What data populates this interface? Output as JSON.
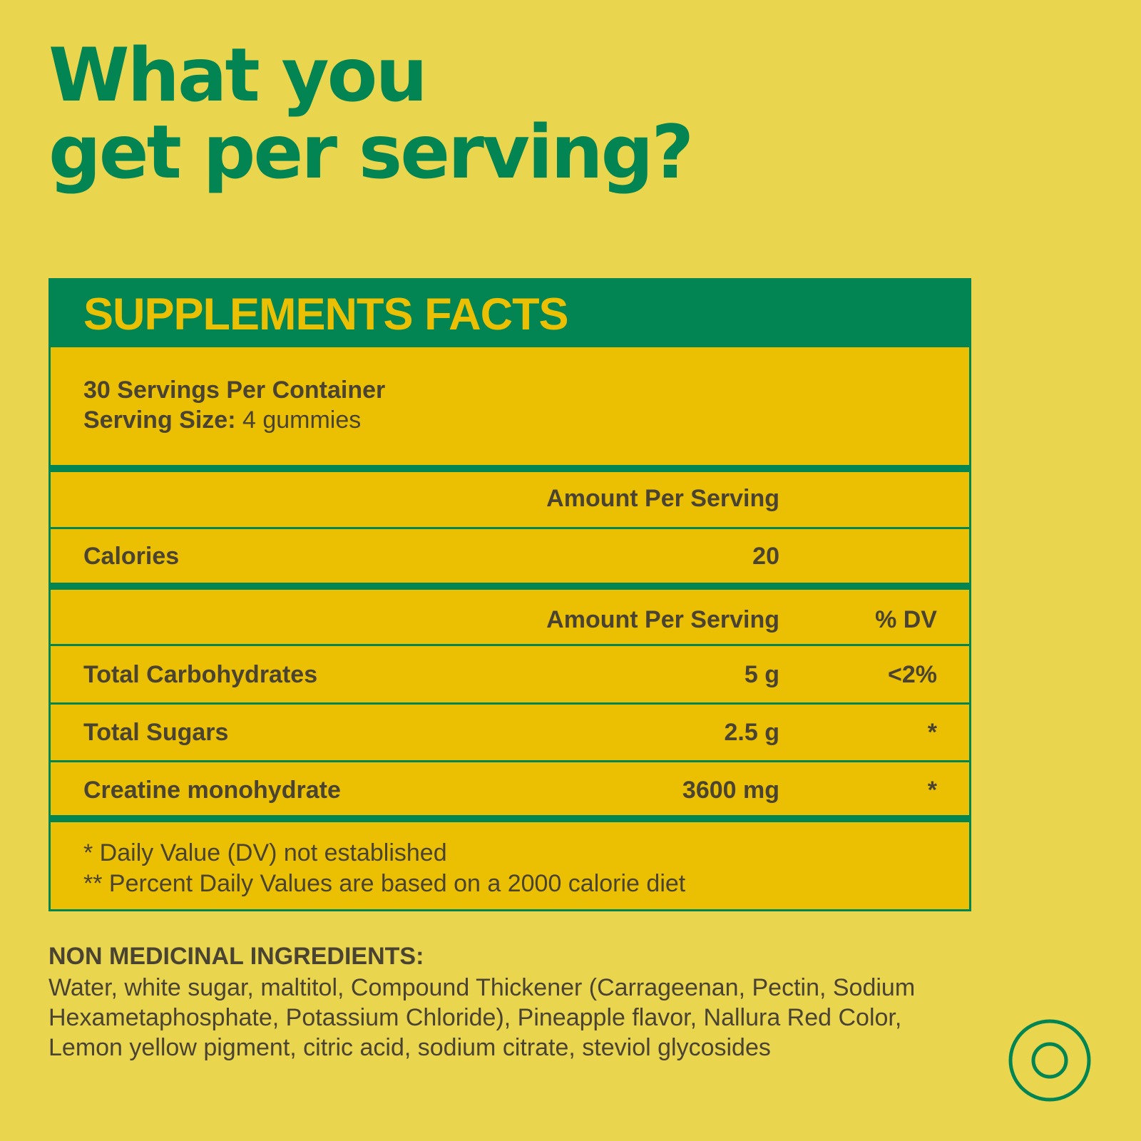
{
  "headline": {
    "line1": "What you",
    "line2": "get per serving?"
  },
  "facts": {
    "title": "SUPPLEMENTS FACTS",
    "servings_per_container": "30 Servings Per Container",
    "serving_size_label": "Serving Size:",
    "serving_size_value": "4 gummies",
    "amount_header_1": "Amount Per Serving",
    "calories": {
      "label": "Calories",
      "amount": "20"
    },
    "amount_header_2": "Amount Per Serving",
    "dv_header": "% DV",
    "rows": [
      {
        "label": "Total Carbohydrates",
        "amount": "5 g",
        "dv": "<2%"
      },
      {
        "label": "Total Sugars",
        "amount": "2.5 g",
        "dv": "*"
      },
      {
        "label": "Creatine monohydrate",
        "amount": "3600 mg",
        "dv": "*"
      }
    ],
    "footnotes": [
      "* Daily Value (DV) not established",
      "** Percent Daily Values are based on a 2000 calorie diet"
    ]
  },
  "ingredients": {
    "title": "NON MEDICINAL INGREDIENTS:",
    "text": "Water, white sugar, maltitol, Compound Thickener (Carrageenan, Pectin, Sodium Hexametaphosphate, Potassium Chloride), Pineapple flavor, Nallura Red Color, Lemon yellow pigment, citric acid, sodium citrate, steviol glycosides"
  },
  "colors": {
    "background": "#ead54f",
    "green": "#028553",
    "panel_yellow": "#ebc003",
    "text_dark": "#4a4332"
  },
  "icons": {
    "corner": "ring-icon"
  }
}
